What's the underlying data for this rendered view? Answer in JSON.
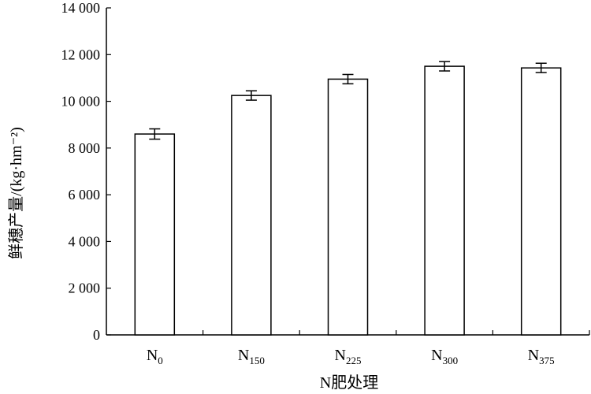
{
  "chart_data": {
    "type": "bar",
    "title": "",
    "xlabel": "N肥处理",
    "ylabel": "鲜穗产量/(kg·hm⁻²)",
    "ylim": [
      0,
      14000
    ],
    "yticks": [
      0,
      2000,
      4000,
      6000,
      8000,
      10000,
      12000,
      14000
    ],
    "ytick_labels": [
      "0",
      "2 000",
      "4 000",
      "6 000",
      "8 000",
      "10 000",
      "12 000",
      "14 000"
    ],
    "categories": [
      {
        "base": "N",
        "sub": "0"
      },
      {
        "base": "N",
        "sub": "150"
      },
      {
        "base": "N",
        "sub": "225"
      },
      {
        "base": "N",
        "sub": "300"
      },
      {
        "base": "N",
        "sub": "375"
      }
    ],
    "values": [
      8600,
      10250,
      10950,
      11500,
      11430
    ],
    "errors": [
      220,
      200,
      200,
      200,
      200
    ],
    "bar_fill": "#ffffff",
    "bar_stroke": "#000000",
    "grid": false,
    "legend": "none"
  }
}
